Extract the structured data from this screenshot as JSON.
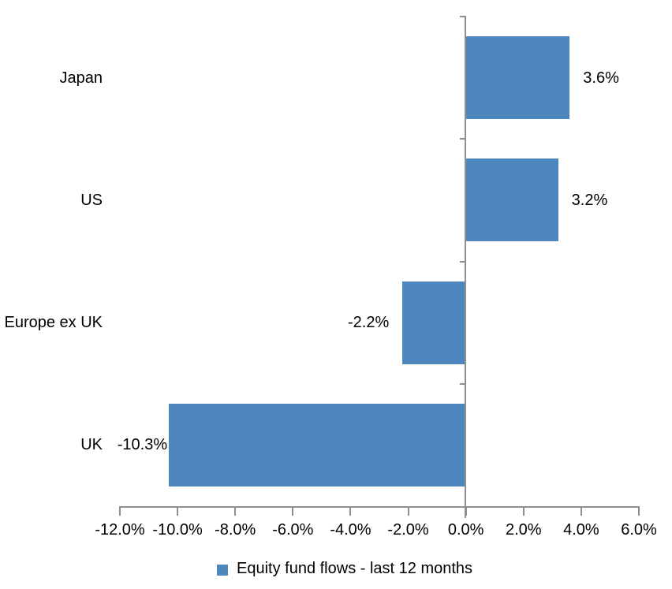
{
  "chart_data": {
    "type": "bar",
    "orientation": "horizontal",
    "categories": [
      "Japan",
      "US",
      "Europe ex UK",
      "UK"
    ],
    "values": [
      3.6,
      3.2,
      -2.2,
      -10.3
    ],
    "data_labels": [
      "3.6%",
      "3.2%",
      "-2.2%",
      "-10.3%"
    ],
    "series": [
      {
        "name": "Equity fund flows - last 12 months",
        "values": [
          3.6,
          3.2,
          -2.2,
          -10.3
        ]
      }
    ],
    "title": "",
    "xlabel": "",
    "ylabel": "",
    "x_axis": {
      "min": -12,
      "max": 6,
      "tick_step": 2,
      "tick_labels": [
        "-12.0%",
        "-10.0%",
        "-8.0%",
        "-6.0%",
        "-4.0%",
        "-2.0%",
        "0.0%",
        "2.0%",
        "4.0%",
        "6.0%"
      ]
    },
    "grid": false,
    "legend": {
      "position": "bottom",
      "label": "Equity fund flows - last 12 months"
    },
    "colors": {
      "bar": "#4E87BD",
      "axis": "#8F8F8F",
      "text": "#000000",
      "background": "#FFFFFF"
    }
  }
}
